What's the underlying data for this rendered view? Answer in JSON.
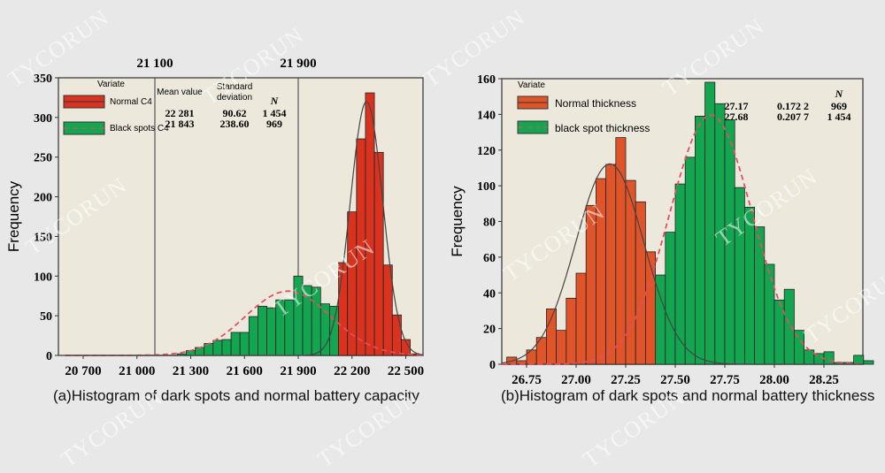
{
  "watermark": "TYCORUN",
  "colors": {
    "background": "#e8e8e8",
    "plot_bg": "#ece9dc",
    "red_left": "#d9331f",
    "red_right": "#e0542a",
    "green": "#14a550",
    "curve_dashed": "#e05060",
    "curve_solid": "#444444"
  },
  "chart_data": [
    {
      "type": "bar",
      "caption": "(a)Histogram of dark spots and normal battery capacity",
      "ylabel": "Frequency",
      "ylim": [
        0,
        350
      ],
      "yticks": [
        0,
        50,
        100,
        150,
        200,
        250,
        300,
        350
      ],
      "xticks": [
        20700,
        21000,
        21300,
        21600,
        21900,
        22200,
        22500
      ],
      "xtick_labels": [
        "20 700",
        "21 000",
        "21 300",
        "21 600",
        "21 900",
        "22 200",
        "22 500"
      ],
      "xlim": [
        20600,
        22600
      ],
      "reference_lines": [
        {
          "x": 21100,
          "label": "21 100"
        },
        {
          "x": 21900,
          "label": "21 900"
        }
      ],
      "bin_width": 50,
      "legend": {
        "title": "Variate",
        "placement": "top-left",
        "headers": [
          "Mean value",
          "Standard deviation",
          "N"
        ],
        "entries": [
          {
            "name": "Normal C4",
            "mean": "22 281",
            "sd": "90.62",
            "n": "1 454"
          },
          {
            "name": "Black spots C4",
            "mean": "21 843",
            "sd": "238.60",
            "n": "969"
          }
        ]
      },
      "series": [
        {
          "name": "Black spots C4",
          "color": "green",
          "bin_start": 21225,
          "values": [
            2,
            6,
            10,
            15,
            19,
            20,
            29,
            29,
            49,
            62,
            60,
            70,
            70,
            100,
            88,
            86,
            65,
            62,
            40,
            18,
            8,
            3
          ],
          "fit": {
            "mean": 21843,
            "sd": 238.6,
            "n": 969,
            "style": "dashed"
          }
        },
        {
          "name": "Normal C4",
          "color": "red",
          "bin_start": 22125,
          "values": [
            117,
            181,
            273,
            331,
            256,
            114,
            51,
            20,
            2
          ],
          "fit": {
            "mean": 22281,
            "sd": 90.62,
            "n": 1454,
            "style": "solid"
          }
        }
      ]
    },
    {
      "type": "bar",
      "caption": "(b)Histogram of dark spots and normal battery thickness",
      "ylabel": "Frequency",
      "ylim": [
        0,
        160
      ],
      "yticks": [
        0,
        20,
        40,
        60,
        80,
        100,
        120,
        140,
        160
      ],
      "xticks": [
        26.75,
        27.0,
        27.25,
        27.5,
        27.75,
        28.0,
        28.25
      ],
      "xtick_labels": [
        "26.75",
        "27.00",
        "27.25",
        "27.50",
        "27.75",
        "28.00",
        "28.25"
      ],
      "xlim": [
        26.62,
        28.45
      ],
      "bin_width": 0.05,
      "legend": {
        "title": "Variate",
        "placement": "top-left",
        "headers": [
          "",
          "",
          "N"
        ],
        "entries": [
          {
            "name": "Normal thickness",
            "mean": "27.17",
            "sd": "0.172 2",
            "n": "969"
          },
          {
            "name": "black spot thickness",
            "mean": "27.68",
            "sd": "0.207 7",
            "n": "1 454"
          }
        ]
      },
      "series": [
        {
          "name": "black spot thickness",
          "color": "green",
          "bin_start": 27.05,
          "values": [
            4,
            3,
            7,
            9,
            11,
            19,
            32,
            50,
            74,
            101,
            116,
            139,
            158,
            146,
            137,
            99,
            88,
            77,
            56,
            36,
            42,
            19,
            8,
            6,
            7,
            1,
            1,
            5,
            2
          ],
          "fit": {
            "mean": 27.68,
            "sd": 0.2077,
            "n": 1454,
            "style": "dashed"
          }
        },
        {
          "name": "Normal thickness",
          "color": "red",
          "bin_start": 26.65,
          "values": [
            4,
            2,
            8,
            15,
            31,
            19,
            37,
            51,
            89,
            104,
            112,
            127,
            103,
            91,
            63
          ],
          "fit": {
            "mean": 27.17,
            "sd": 0.1722,
            "n": 969,
            "style": "solid"
          }
        }
      ]
    }
  ]
}
